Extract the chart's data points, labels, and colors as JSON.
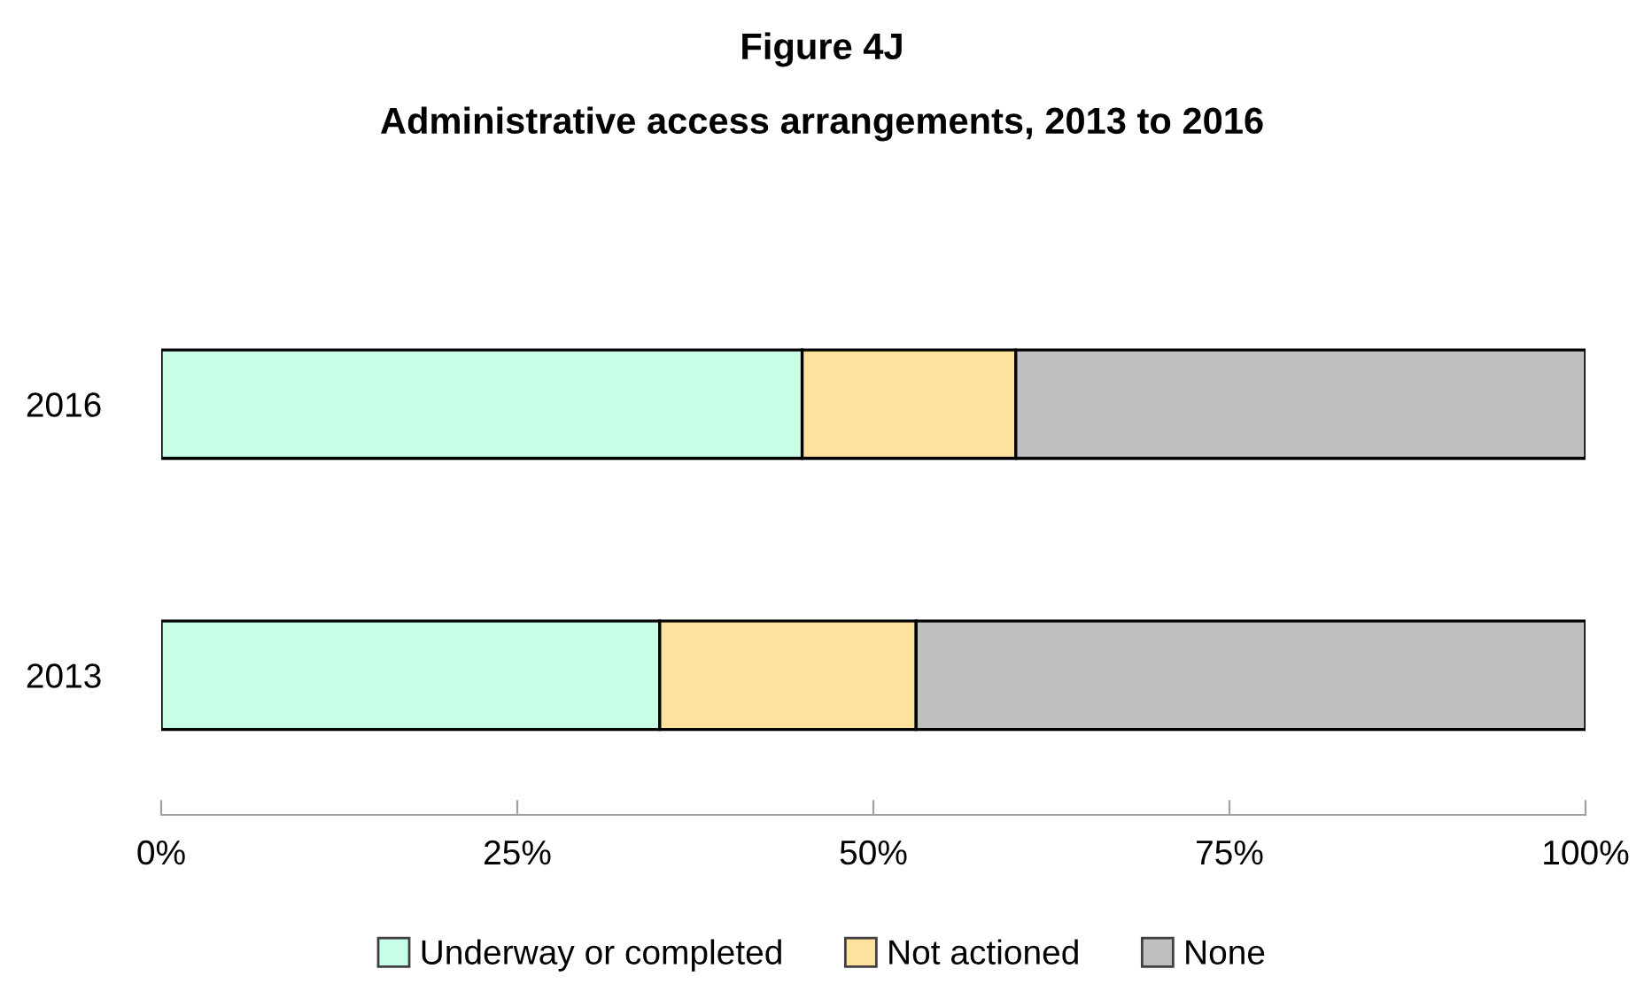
{
  "chart_data": {
    "type": "bar",
    "orientation": "horizontal",
    "stacked": true,
    "title": "Figure 4J",
    "subtitle": "Administrative access arrangements, 2013 to 2016",
    "categories": [
      "2016",
      "2013"
    ],
    "series": [
      {
        "name": "Underway or completed",
        "color": "#c8fde6",
        "values": [
          45,
          35
        ]
      },
      {
        "name": "Not actioned",
        "color": "#fde19c",
        "values": [
          15,
          18
        ]
      },
      {
        "name": "None",
        "color": "#bfbfbf",
        "values": [
          40,
          47
        ]
      }
    ],
    "xlim": [
      0,
      100
    ],
    "xticks": [
      {
        "value": 0,
        "label": "0%"
      },
      {
        "value": 25,
        "label": "25%"
      },
      {
        "value": 50,
        "label": "50%"
      },
      {
        "value": 75,
        "label": "75%"
      },
      {
        "value": 100,
        "label": "100%"
      }
    ],
    "grid": false,
    "legend": "bottom"
  }
}
